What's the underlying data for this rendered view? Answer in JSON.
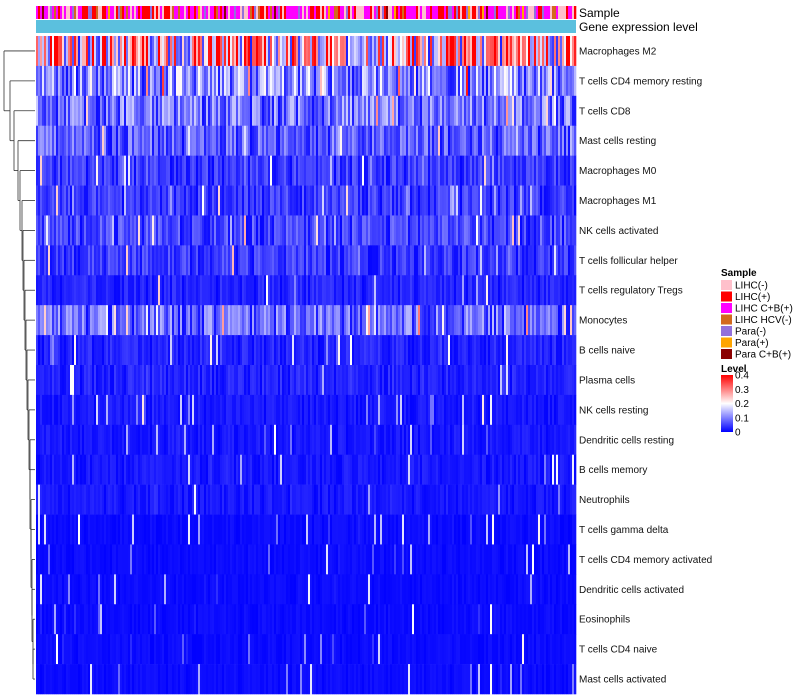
{
  "chart_data": {
    "type": "heatmap",
    "title": "",
    "annotation_rows": [
      "Sample",
      "Gene expression level"
    ],
    "rows": [
      "Macrophages M2",
      "T cells CD4 memory resting",
      "T cells CD8",
      "Mast cells resting",
      "Macrophages M0",
      "Macrophages M1",
      "NK cells activated",
      "T cells follicular helper",
      "T cells regulatory  Tregs",
      "Monocytes",
      "B cells naive",
      "Plasma cells",
      "NK cells resting",
      "Dendritic cells resting",
      "B cells memory",
      "Neutrophils",
      "T cells gamma delta",
      "T cells CD4 memory activated",
      "Dendritic cells activated",
      "Eosinophils",
      "T cells CD4 naive",
      "Mast cells activated"
    ],
    "row_mean_levels": [
      0.28,
      0.13,
      0.1,
      0.08,
      0.05,
      0.05,
      0.06,
      0.05,
      0.03,
      0.09,
      0.03,
      0.03,
      0.02,
      0.02,
      0.02,
      0.02,
      0.01,
      0.01,
      0.01,
      0.01,
      0.01,
      0.01
    ],
    "color_scale": {
      "min": 0,
      "max": 0.4,
      "colors": [
        "#0000ff",
        "#ffffff",
        "#ff0000"
      ]
    },
    "legends": {
      "sample": {
        "title": "Sample",
        "items": [
          {
            "label": "LIHC(-)",
            "color": "#ffc0cb"
          },
          {
            "label": "LIHC(+)",
            "color": "#ff0000"
          },
          {
            "label": "LIHC C+B(+)",
            "color": "#ff00ff"
          },
          {
            "label": "LIHC HCV(-)",
            "color": "#d2691e"
          },
          {
            "label": "Para(-)",
            "color": "#9370db"
          },
          {
            "label": "Para(+)",
            "color": "#ffa500"
          },
          {
            "label": "Para C+B(+)",
            "color": "#8b0000"
          }
        ]
      },
      "level": {
        "title": "Level",
        "ticks": [
          "0.4",
          "0.3",
          "0.2",
          "0.1",
          "0"
        ],
        "tick_values": [
          0.4,
          0.3,
          0.2,
          0.1,
          0
        ]
      }
    },
    "gene_expression_color": "#5bc0de"
  }
}
